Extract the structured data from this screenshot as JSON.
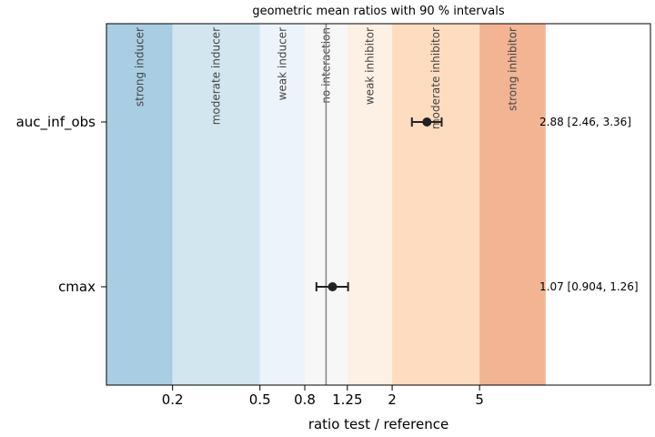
{
  "chart_data": {
    "type": "forest",
    "title": "geometric mean ratios with 90 % intervals",
    "xlabel": "ratio test / reference",
    "xscale": "log",
    "xlim": [
      0.1,
      30
    ],
    "xticks": [
      {
        "value": 0.2,
        "label": "0.2"
      },
      {
        "value": 0.5,
        "label": "0.5"
      },
      {
        "value": 0.8,
        "label": "0.8"
      },
      {
        "value": 1.25,
        "label": "1.25"
      },
      {
        "value": 2,
        "label": "2"
      },
      {
        "value": 5,
        "label": "5"
      }
    ],
    "reference_line": 1,
    "bands": [
      {
        "label": "strong inducer",
        "from": 0.1,
        "to": 0.2,
        "color": "#a9cde3"
      },
      {
        "label": "moderate inducer",
        "from": 0.2,
        "to": 0.5,
        "color": "#d2e6f0"
      },
      {
        "label": "weak inducer",
        "from": 0.5,
        "to": 0.8,
        "color": "#edf3fb"
      },
      {
        "label": "no interaction",
        "from": 0.8,
        "to": 1.25,
        "color": "#f7f7f7"
      },
      {
        "label": "weak inhibitor",
        "from": 1.25,
        "to": 2,
        "color": "#fdf0e4"
      },
      {
        "label": "moderate inhibitor",
        "from": 2,
        "to": 5,
        "color": "#fddcbf"
      },
      {
        "label": "strong inhibitor",
        "from": 5,
        "to": 10,
        "color": "#f3b494"
      }
    ],
    "rows": [
      {
        "name": "auc_inf_obs",
        "estimate": 2.88,
        "lower": 2.46,
        "upper": 3.36,
        "annotation": "2.88 [2.46, 3.36]"
      },
      {
        "name": "cmax",
        "estimate": 1.07,
        "lower": 0.904,
        "upper": 1.26,
        "annotation": "1.07 [0.904, 1.26]"
      }
    ],
    "colors": {
      "point": "#222222",
      "reference_line": "#888888",
      "axes": "#000000"
    }
  }
}
